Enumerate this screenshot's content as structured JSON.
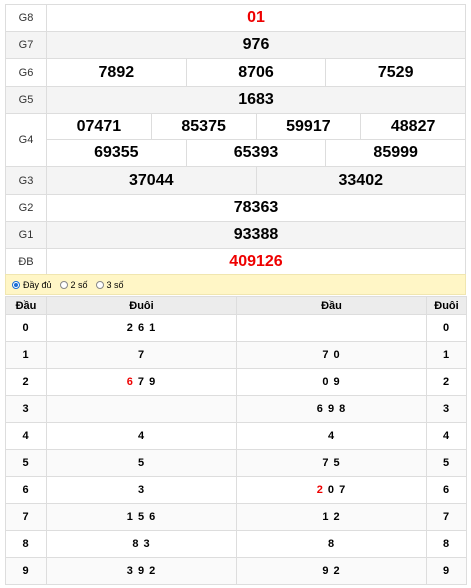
{
  "prizes": {
    "g8": {
      "label": "G8",
      "value": "01"
    },
    "g7": {
      "label": "G7",
      "value": "976"
    },
    "g6": {
      "label": "G6",
      "values": [
        "7892",
        "8706",
        "7529"
      ]
    },
    "g5": {
      "label": "G5",
      "value": "1683"
    },
    "g4": {
      "label": "G4",
      "row1": [
        "07471",
        "85375",
        "59917",
        "48827"
      ],
      "row2": [
        "69355",
        "65393",
        "85999"
      ]
    },
    "g3": {
      "label": "G3",
      "values": [
        "37044",
        "33402"
      ]
    },
    "g2": {
      "label": "G2",
      "value": "78363"
    },
    "g1": {
      "label": "G1",
      "value": "93388"
    },
    "db": {
      "label": "ĐB",
      "value": "409126"
    }
  },
  "filter": {
    "options": [
      "Đầy đủ",
      "2 số",
      "3 số"
    ],
    "selected": "Đầy đủ"
  },
  "loto": {
    "headers": [
      "Đầu",
      "Đuôi",
      "Đầu",
      "Đuôi"
    ],
    "rows": [
      {
        "head": "0",
        "tails_hl": "",
        "tails": "2 6 1",
        "heads_hl": "",
        "heads": "",
        "tail": "0"
      },
      {
        "head": "1",
        "tails_hl": "",
        "tails": "7",
        "heads_hl": "",
        "heads": "7 0",
        "tail": "1"
      },
      {
        "head": "2",
        "tails_hl": "6",
        "tails": " 7 9",
        "heads_hl": "",
        "heads": "0 9",
        "tail": "2"
      },
      {
        "head": "3",
        "tails_hl": "",
        "tails": "",
        "heads_hl": "",
        "heads": "6 9 8",
        "tail": "3"
      },
      {
        "head": "4",
        "tails_hl": "",
        "tails": "4",
        "heads_hl": "",
        "heads": "4",
        "tail": "4"
      },
      {
        "head": "5",
        "tails_hl": "",
        "tails": "5",
        "heads_hl": "",
        "heads": "7 5",
        "tail": "5"
      },
      {
        "head": "6",
        "tails_hl": "",
        "tails": "3",
        "heads_hl": "2",
        "heads": " 0 7",
        "tail": "6"
      },
      {
        "head": "7",
        "tails_hl": "",
        "tails": "1 5 6",
        "heads_hl": "",
        "heads": "1 2",
        "tail": "7"
      },
      {
        "head": "8",
        "tails_hl": "",
        "tails": "8 3",
        "heads_hl": "",
        "heads": "8",
        "tail": "8"
      },
      {
        "head": "9",
        "tails_hl": "",
        "tails": "3 9 2",
        "heads_hl": "",
        "heads": "9 2",
        "tail": "9"
      }
    ]
  },
  "colors": {
    "highlight": "#e00000",
    "filter_bg": "#fff6c6"
  }
}
